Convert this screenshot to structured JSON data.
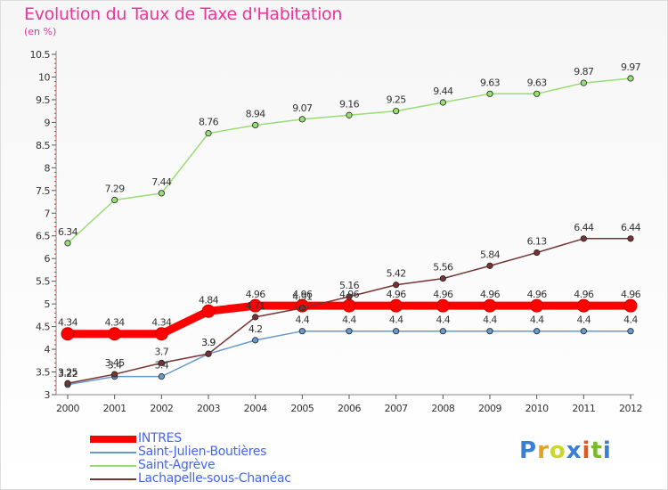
{
  "title": "Evolution du Taux de Taxe d'Habitation",
  "subtitle": "(en %)",
  "logo_text": "Proxiti",
  "logo_colors": [
    "#3a7fd5",
    "#e8a020",
    "#c8d830",
    "#3a7fd5",
    "#e05a20",
    "#7ab82e",
    "#3a7fd5"
  ],
  "chart_data": {
    "type": "line",
    "title": "Evolution du Taux de Taxe d'Habitation",
    "ylabel": "(en %)",
    "xlabel": "",
    "x": [
      "2000",
      "2001",
      "2002",
      "2003",
      "2004",
      "2005",
      "2006",
      "2007",
      "2008",
      "2009",
      "2010",
      "2011",
      "2012"
    ],
    "ylim": [
      3,
      10.5
    ],
    "yticks": [
      "3",
      "3.5",
      "4",
      "4.5",
      "5",
      "5.5",
      "6",
      "6.5",
      "7",
      "7.5",
      "8",
      "8.5",
      "9",
      "9.5",
      "10",
      "10.5"
    ],
    "grid": false,
    "legend_position": "bottom",
    "series": [
      {
        "name": "INTRES",
        "color": "#ff0000",
        "values": [
          4.34,
          4.34,
          4.34,
          4.84,
          4.96,
          4.96,
          4.96,
          4.96,
          4.96,
          4.96,
          4.96,
          4.96,
          4.96
        ],
        "labels": [
          "4.34",
          "4.34",
          "4.34",
          "4.84",
          "4.96",
          "4.96",
          "4.96",
          "4.96",
          "4.96",
          "4.96",
          "4.96",
          "4.96",
          "4.96"
        ]
      },
      {
        "name": "Saint-Julien-Boutières",
        "color": "#6699cc",
        "values": [
          3.22,
          3.4,
          3.4,
          3.9,
          4.2,
          4.4,
          4.4,
          4.4,
          4.4,
          4.4,
          4.4,
          4.4,
          4.4
        ],
        "labels": [
          "3.22",
          "3.4",
          "3.4",
          "3.9",
          "4.2",
          "4.4",
          "4.4",
          "4.4",
          "4.4",
          "4.4",
          "4.4",
          "4.4",
          "4.4"
        ]
      },
      {
        "name": "Saint-Agrève",
        "color": "#99dd77",
        "values": [
          6.34,
          7.29,
          7.44,
          8.76,
          8.94,
          9.07,
          9.16,
          9.25,
          9.44,
          9.63,
          9.63,
          9.87,
          9.97
        ],
        "labels": [
          "6.34",
          "7.29",
          "7.44",
          "8.76",
          "8.94",
          "9.07",
          "9.16",
          "9.25",
          "9.44",
          "9.63",
          "9.63",
          "9.87",
          "9.97"
        ]
      },
      {
        "name": "Lachapelle-sous-Chanéac",
        "color": "#773333",
        "values": [
          3.25,
          3.45,
          3.7,
          3.9,
          4.71,
          4.91,
          5.16,
          5.42,
          5.56,
          5.84,
          6.13,
          6.44,
          6.44
        ],
        "labels": [
          "3.25",
          "3.45",
          "3.7",
          "3.9",
          "4.71",
          "4.91",
          "5.16",
          "5.42",
          "5.56",
          "5.84",
          "6.13",
          "6.44",
          "6.44"
        ]
      }
    ]
  }
}
